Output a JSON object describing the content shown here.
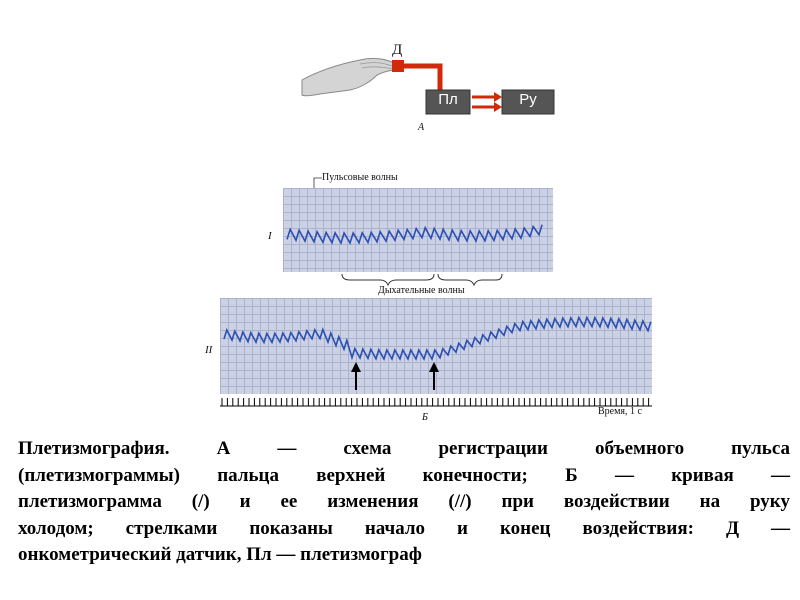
{
  "diagram_a": {
    "sensor_label": "Д",
    "pl_label": "Пл",
    "ru_label": "Ру",
    "panel_label": "A",
    "colors": {
      "wire": "#d02a0a",
      "box": "#555555",
      "hand": "#c9c9c9"
    }
  },
  "chart_data": {
    "type": "line",
    "traces": [
      {
        "label": "I",
        "annotations": [
          "Пульсовые волны",
          "Дыхательные волны"
        ]
      },
      {
        "label": "II",
        "arrows": 2
      }
    ],
    "time_axis_label": "Время, 1 с",
    "panel_label": "Б",
    "colors": {
      "trace": "#2b4fb3",
      "grid_bg": "#ccd2e4",
      "grid_line": "#a9b3d1"
    }
  },
  "caption": {
    "lines": [
      "Плетизмография. А — схема регистрации объемного пульса",
      "(плетизмограммы) пальца верхней конечности; Б — кривая —",
      "плетизмограмма (/) и ее изменения (//) при воздействии на руку",
      "холодом; стрелками показаны начало и конец воздействия: Д —",
      "онкометрический датчик, Пл — плетизмограф"
    ]
  }
}
